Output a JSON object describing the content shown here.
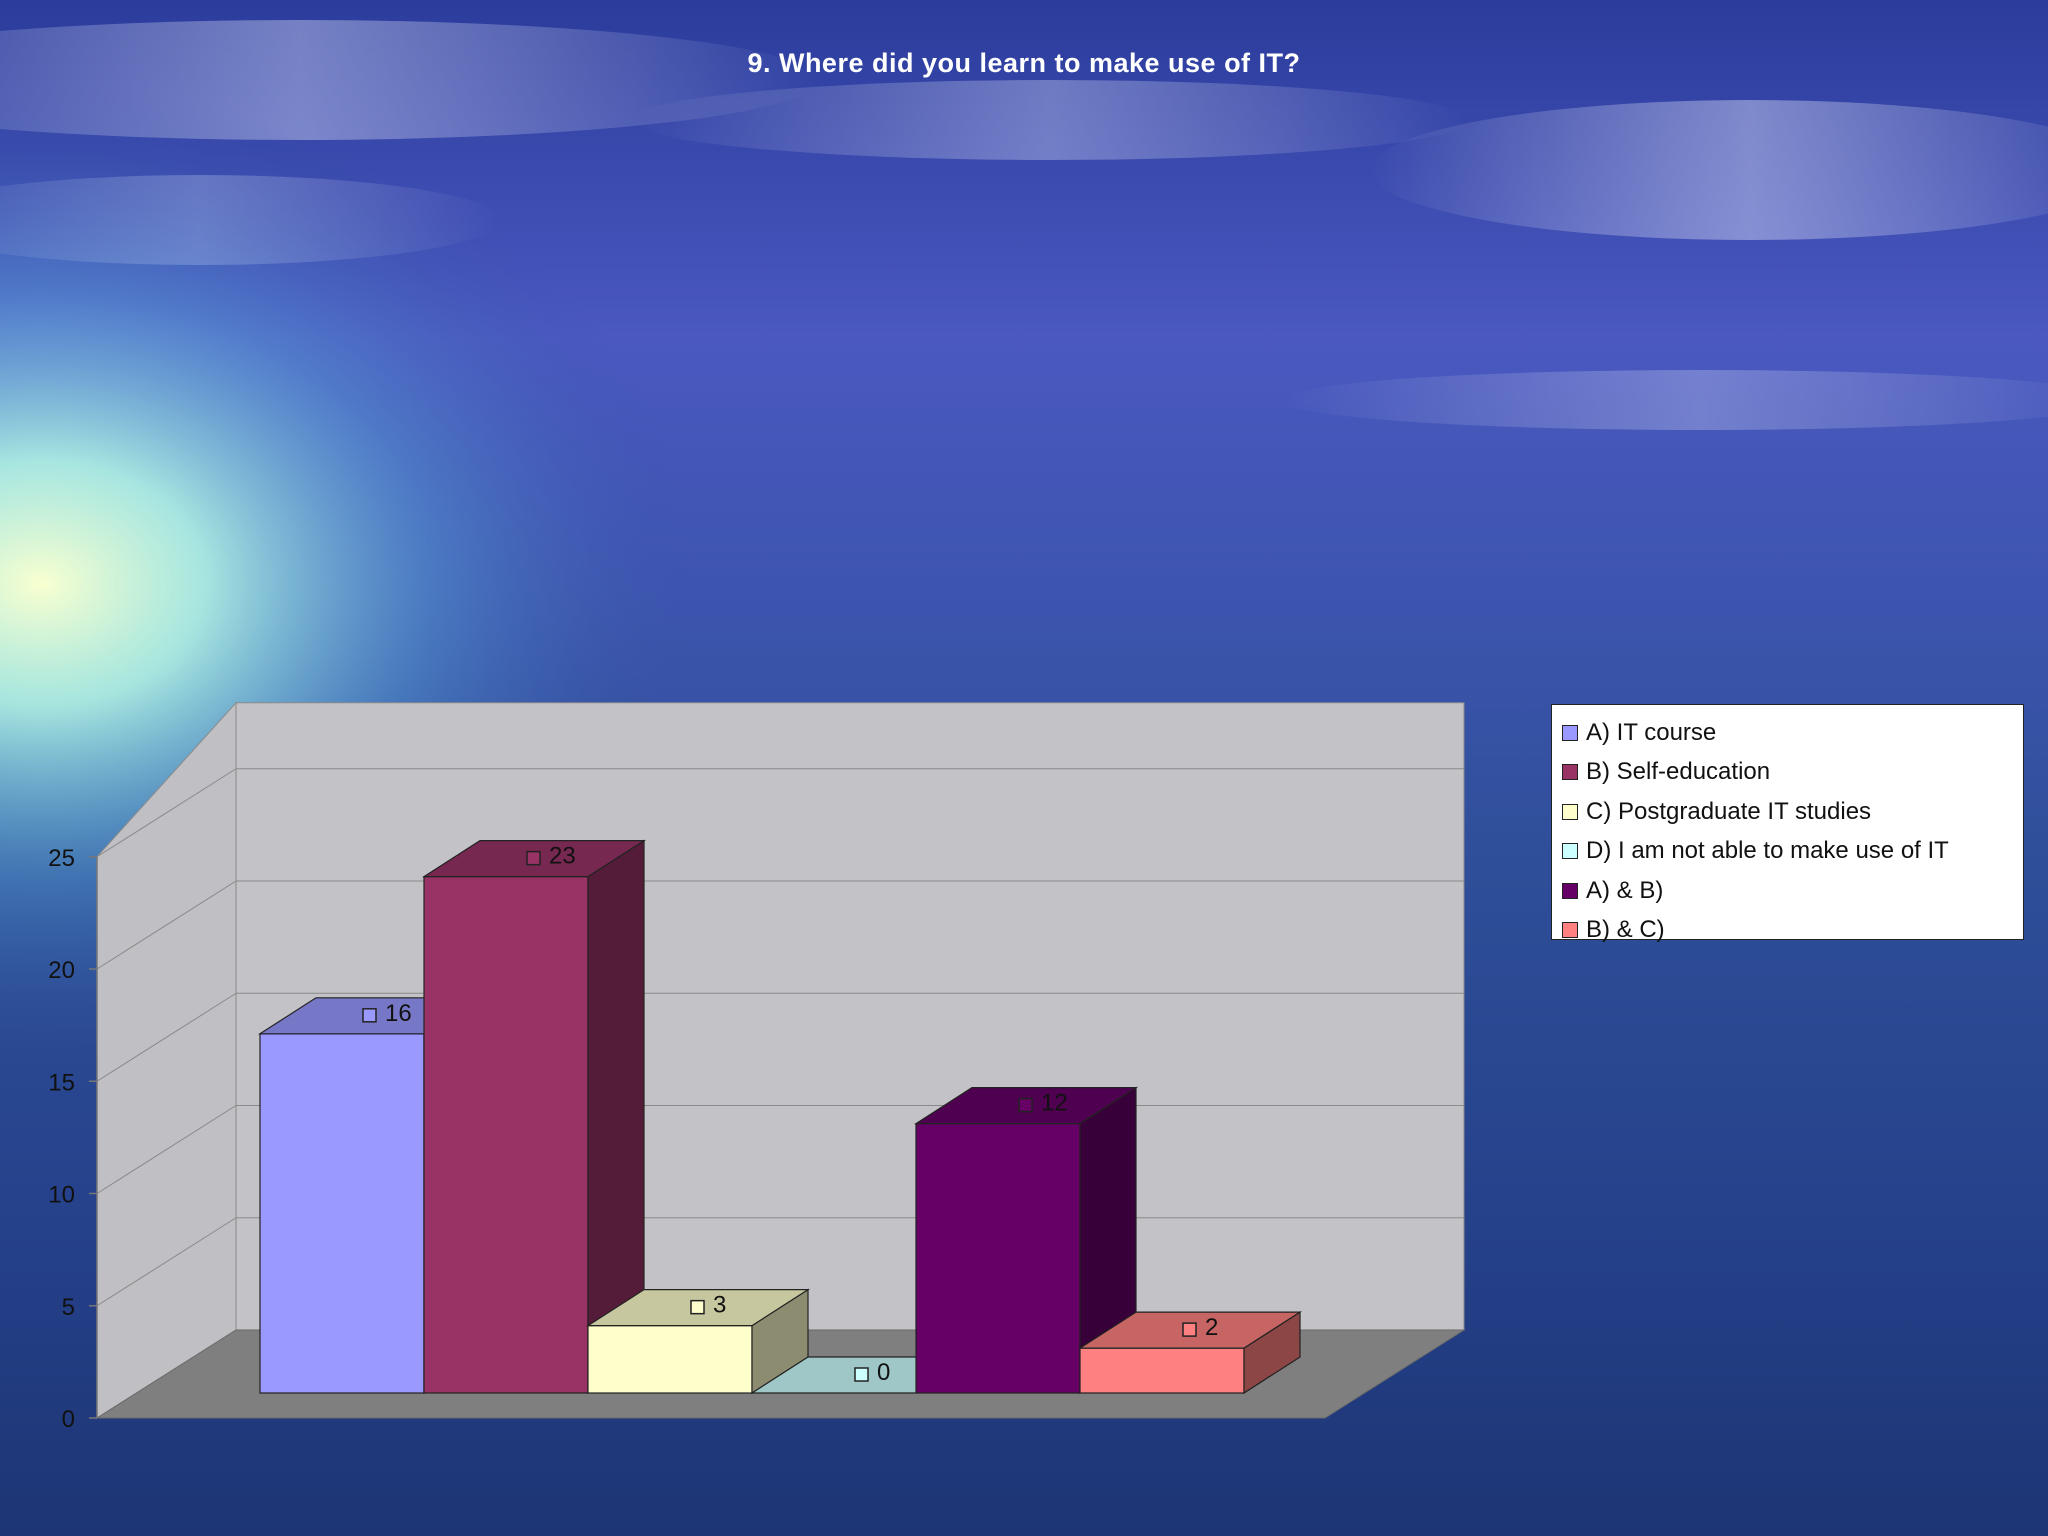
{
  "chart_data": {
    "type": "bar",
    "title": "9. Where did you learn to make use of IT?",
    "xlabel": "",
    "ylabel": "",
    "ylim": [
      0,
      25
    ],
    "yticks": [
      "0",
      "5",
      "10",
      "15",
      "20",
      "25"
    ],
    "grid": true,
    "legend_position": "right",
    "series": [
      {
        "name": "A) IT course",
        "value": 16,
        "color": "#9999ff"
      },
      {
        "name": "B) Self-education",
        "value": 23,
        "color": "#993366"
      },
      {
        "name": "C) Postgraduate IT studies",
        "value": 3,
        "color": "#ffffcc"
      },
      {
        "name": "D) I am not able to make use of IT",
        "value": 0,
        "color": "#ccffff"
      },
      {
        "name": "A) & B)",
        "value": 12,
        "color": "#660066"
      },
      {
        "name": "B) & C)",
        "value": 2,
        "color": "#ff8080"
      }
    ]
  }
}
